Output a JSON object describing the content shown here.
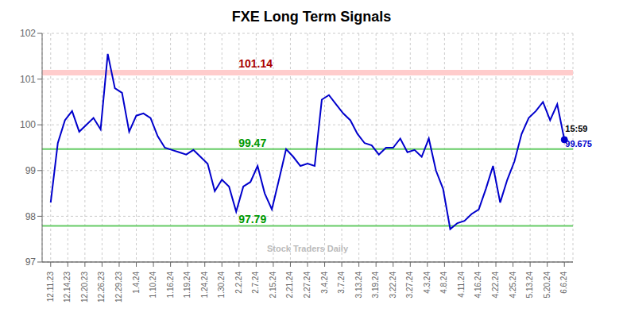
{
  "chart_data": {
    "type": "line",
    "title": "FXE Long Term Signals",
    "x": [
      0,
      0.4166666666666667,
      0.8333333333333334,
      1.25,
      1.6666666666666667,
      2.0833333333333335,
      2.5,
      2.9166666666666665,
      3.3333333333333335,
      3.75,
      4.166666666666667,
      4.583333333333333,
      5,
      5.416666666666667,
      5.833333333333333,
      6.25,
      6.666666666666667,
      7.083333333333333,
      7.5,
      7.916666666666667,
      8.333333333333334,
      8.75,
      9.166666666666666,
      9.583333333333334,
      10,
      10.416666666666666,
      10.833333333333334,
      11.25,
      11.666666666666666,
      12.083333333333334,
      12.5,
      12.916666666666666,
      13.333333333333334,
      13.75,
      14.166666666666666,
      14.583333333333334,
      15,
      15.416666666666666,
      15.833333333333334,
      16.25,
      16.666666666666668,
      17.083333333333332,
      17.5,
      17.916666666666668,
      18.333333333333332,
      18.75,
      19.166666666666668,
      19.583333333333332,
      20,
      20.416666666666668,
      20.833333333333332,
      21.25,
      21.666666666666668,
      22.083333333333332,
      22.5,
      22.916666666666668,
      23.333333333333332,
      23.75,
      24.166666666666668,
      24.583333333333332,
      25,
      25.416666666666668,
      25.833333333333332,
      26.25,
      26.666666666666668,
      27.083333333333332,
      27.5,
      27.916666666666668,
      28.333333333333332,
      28.75,
      29.166666666666668,
      29.583333333333332,
      30
    ],
    "series": [
      {
        "color": "#0000cc",
        "values": [
          98.3,
          99.6,
          100.1,
          100.3,
          99.85,
          100.0,
          100.15,
          99.9,
          101.55,
          100.8,
          100.7,
          99.85,
          100.2,
          100.25,
          100.15,
          99.75,
          99.5,
          99.45,
          99.4,
          99.35,
          99.45,
          99.3,
          99.15,
          98.55,
          98.8,
          98.65,
          98.1,
          98.65,
          98.75,
          99.1,
          98.5,
          98.15,
          98.8,
          99.47,
          99.3,
          99.1,
          99.15,
          99.1,
          100.55,
          100.65,
          100.45,
          100.25,
          100.1,
          99.8,
          99.6,
          99.55,
          99.35,
          99.5,
          99.5,
          99.7,
          99.4,
          99.45,
          99.3,
          99.7,
          99.0,
          98.6,
          97.72,
          97.85,
          97.9,
          98.05,
          98.15,
          98.6,
          99.1,
          98.3,
          98.8,
          99.2,
          99.8,
          100.15,
          100.3,
          100.5,
          100.1,
          100.45,
          99.675
        ]
      }
    ],
    "xlim": [
      -0.5,
      30.5
    ],
    "xticks": [
      {
        "value": 0,
        "label": "12.11.23"
      },
      {
        "value": 1,
        "label": "12.14.23"
      },
      {
        "value": 2,
        "label": "12.20.23"
      },
      {
        "value": 3,
        "label": "12.26.23"
      },
      {
        "value": 4,
        "label": "12.29.23"
      },
      {
        "value": 5,
        "label": "1.4.24"
      },
      {
        "value": 6,
        "label": "1.10.24"
      },
      {
        "value": 7,
        "label": "1.16.24"
      },
      {
        "value": 8,
        "label": "1.19.24"
      },
      {
        "value": 9,
        "label": "1.24.24"
      },
      {
        "value": 10,
        "label": "1.30.24"
      },
      {
        "value": 11,
        "label": "2.2.24"
      },
      {
        "value": 12,
        "label": "2.7.24"
      },
      {
        "value": 13,
        "label": "2.15.24"
      },
      {
        "value": 14,
        "label": "2.21.24"
      },
      {
        "value": 15,
        "label": "2.27.24"
      },
      {
        "value": 16,
        "label": "3.4.24"
      },
      {
        "value": 17,
        "label": "3.7.24"
      },
      {
        "value": 18,
        "label": "3.13.24"
      },
      {
        "value": 19,
        "label": "3.19.24"
      },
      {
        "value": 20,
        "label": "3.22.24"
      },
      {
        "value": 21,
        "label": "3.27.24"
      },
      {
        "value": 22,
        "label": "4.3.24"
      },
      {
        "value": 23,
        "label": "4.8.24"
      },
      {
        "value": 24,
        "label": "4.11.24"
      },
      {
        "value": 25,
        "label": "4.16.24"
      },
      {
        "value": 26,
        "label": "4.22.24"
      },
      {
        "value": 27,
        "label": "4.25.24"
      },
      {
        "value": 28,
        "label": "5.13.24"
      },
      {
        "value": 29,
        "label": "5.20.24"
      },
      {
        "value": 30,
        "label": "6.6.24"
      }
    ],
    "ylim": [
      97,
      102
    ],
    "yticks": [
      97,
      98,
      99,
      100,
      101,
      102
    ],
    "grid": true,
    "hlines": [
      {
        "y1": 101.08,
        "y2": 101.2,
        "label": "101.14",
        "color": "#ffcccc",
        "label_color": "#aa0000"
      },
      {
        "value": 99.47,
        "label": "99.47",
        "color": "#66cc66",
        "label_color": "#009900"
      },
      {
        "value": 97.79,
        "label": "97.79",
        "color": "#66cc66",
        "label_color": "#009900"
      }
    ],
    "points": [
      {
        "x": 30,
        "y": 99.675,
        "color": "#0000cc"
      }
    ],
    "annotations": [
      {
        "text": "15:59",
        "x": 30.05,
        "y": 99.855,
        "color": "#000000",
        "anchor": "bottom-left"
      },
      {
        "text": "99.675",
        "x": 30.05,
        "y": 99.655,
        "color": "#0000cc",
        "anchor": "top-left"
      },
      {
        "text": "Stock Traders Daily",
        "x": 15,
        "y": 97.22,
        "color": "#bbbbbb",
        "anchor": "bottom-center"
      }
    ]
  }
}
